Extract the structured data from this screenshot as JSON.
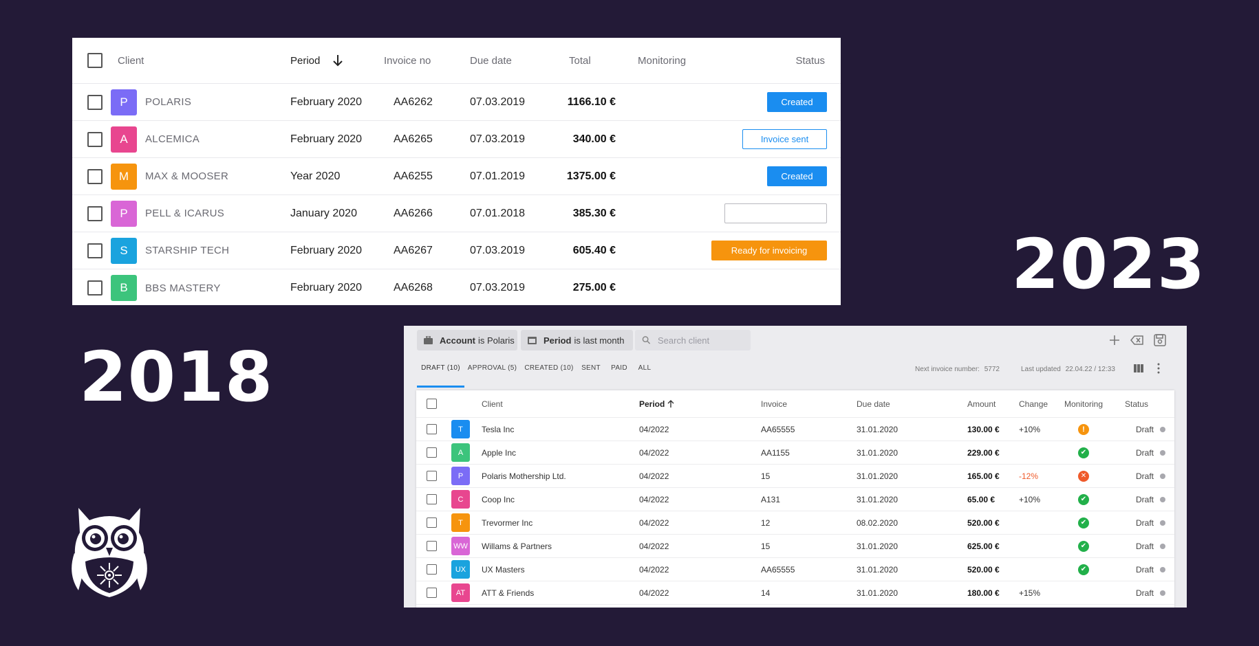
{
  "labels": {
    "year_old": "2018",
    "year_new": "2023"
  },
  "colors": {
    "background": "#231a37",
    "accent_blue": "#1a8df0",
    "accent_orange": "#f6940e",
    "error_red": "#ef5a2a",
    "ok_green": "#22b04a"
  },
  "old_table": {
    "headers": {
      "client": "Client",
      "period": "Period",
      "invoice_no": "Invoice no",
      "due_date": "Due date",
      "total": "Total",
      "monitoring": "Monitoring",
      "status": "Status"
    },
    "sort_icon": "arrow-down-icon",
    "rows": [
      {
        "initial": "P",
        "color": "#7b6cf6",
        "client": "POLARIS",
        "period": "February 2020",
        "invoice": "AA6262",
        "due": "07.03.2019",
        "total": "1166.10 €",
        "status": "Created",
        "status_type": "created"
      },
      {
        "initial": "A",
        "color": "#e8468f",
        "client": "ALCEMICA",
        "period": "February 2020",
        "invoice": "AA6265",
        "due": "07.03.2019",
        "total": "340.00 €",
        "status": "Invoice sent",
        "status_type": "sent"
      },
      {
        "initial": "M",
        "color": "#f6940e",
        "client": "MAX & MOOSER",
        "period": "Year 2020",
        "invoice": "AA6255",
        "due": "07.01.2019",
        "total": "1375.00 €",
        "status": "Created",
        "status_type": "created"
      },
      {
        "initial": "P",
        "color": "#d966d6",
        "client": "PELL & ICARUS",
        "period": "January 2020",
        "invoice": "AA6266",
        "due": "07.01.2018",
        "total": "385.30 €",
        "status": "",
        "status_type": "empty"
      },
      {
        "initial": "S",
        "color": "#1aa3de",
        "client": "STARSHIP TECH",
        "period": "February 2020",
        "invoice": "AA6267",
        "due": "07.03.2019",
        "total": "605.40 €",
        "status": "Ready for invoicing",
        "status_type": "ready"
      },
      {
        "initial": "B",
        "color": "#3cc47c",
        "client": "BBS MASTERY",
        "period": "February 2020",
        "invoice": "AA6268",
        "due": "07.03.2019",
        "total": "275.00 €",
        "status": "",
        "status_type": "none"
      }
    ]
  },
  "new_panel": {
    "filters": {
      "account_key": "Account",
      "account_value": "is Polaris",
      "period_key": "Period",
      "period_value": "is last month",
      "search_placeholder": "Search client"
    },
    "toolbar_icons": [
      "plus-icon",
      "clear-filter-icon",
      "save-icon"
    ],
    "tabs": [
      "DRAFT (10)",
      "APPROVAL (5)",
      "CREATED (10)",
      "SENT",
      "PAID",
      "ALL"
    ],
    "active_tab": 0,
    "next_invoice_label": "Next invoice number:",
    "next_invoice_value": "5772",
    "last_updated_label": "Last updated",
    "last_updated_value": "22.04.22 / 12:33",
    "headers": {
      "client": "Client",
      "period": "Period",
      "invoice": "Invoice",
      "due_date": "Due date",
      "amount": "Amount",
      "change": "Change",
      "monitoring": "Monitoring",
      "status": "Status"
    },
    "sort_icon": "arrow-up-icon",
    "rows": [
      {
        "initial": "T",
        "color": "#1a8df0",
        "client": "Tesla Inc",
        "period": "04/2022",
        "invoice": "AA65555",
        "due": "31.01.2020",
        "amount": "130.00 €",
        "change": "+10%",
        "change_type": "pos",
        "monitoring": "warn",
        "status": "Draft"
      },
      {
        "initial": "A",
        "color": "#3cc47c",
        "client": "Apple Inc",
        "period": "04/2022",
        "invoice": "AA1155",
        "due": "31.01.2020",
        "amount": "229.00 €",
        "change": "",
        "change_type": "none",
        "monitoring": "ok",
        "status": "Draft"
      },
      {
        "initial": "P",
        "color": "#7b6cf6",
        "client": "Polaris Mothership Ltd.",
        "period": "04/2022",
        "invoice": "15",
        "due": "31.01.2020",
        "amount": "165.00 €",
        "change": "-12%",
        "change_type": "neg",
        "monitoring": "err",
        "status": "Draft"
      },
      {
        "initial": "C",
        "color": "#e8468f",
        "client": "Coop Inc",
        "period": "04/2022",
        "invoice": "A131",
        "due": "31.01.2020",
        "amount": "65.00 €",
        "change": "+10%",
        "change_type": "pos",
        "monitoring": "ok",
        "status": "Draft"
      },
      {
        "initial": "T",
        "color": "#f6940e",
        "client": "Trevormer Inc",
        "period": "04/2022",
        "invoice": "12",
        "due": "08.02.2020",
        "amount": "520.00 €",
        "change": "",
        "change_type": "none",
        "monitoring": "ok",
        "status": "Draft"
      },
      {
        "initial": "WW",
        "color": "#d966d6",
        "client": "Willams & Partners",
        "period": "04/2022",
        "invoice": "15",
        "due": "31.01.2020",
        "amount": "625.00 €",
        "change": "",
        "change_type": "none",
        "monitoring": "ok",
        "status": "Draft"
      },
      {
        "initial": "UX",
        "color": "#1aa3de",
        "client": "UX Masters",
        "period": "04/2022",
        "invoice": "AA65555",
        "due": "31.01.2020",
        "amount": "520.00 €",
        "change": "",
        "change_type": "none",
        "monitoring": "ok",
        "status": "Draft"
      },
      {
        "initial": "AT",
        "color": "#e8468f",
        "client": "ATT & Friends",
        "period": "04/2022",
        "invoice": "14",
        "due": "31.01.2020",
        "amount": "180.00 €",
        "change": "+15%",
        "change_type": "pos",
        "monitoring": "none",
        "status": "Draft"
      }
    ]
  }
}
